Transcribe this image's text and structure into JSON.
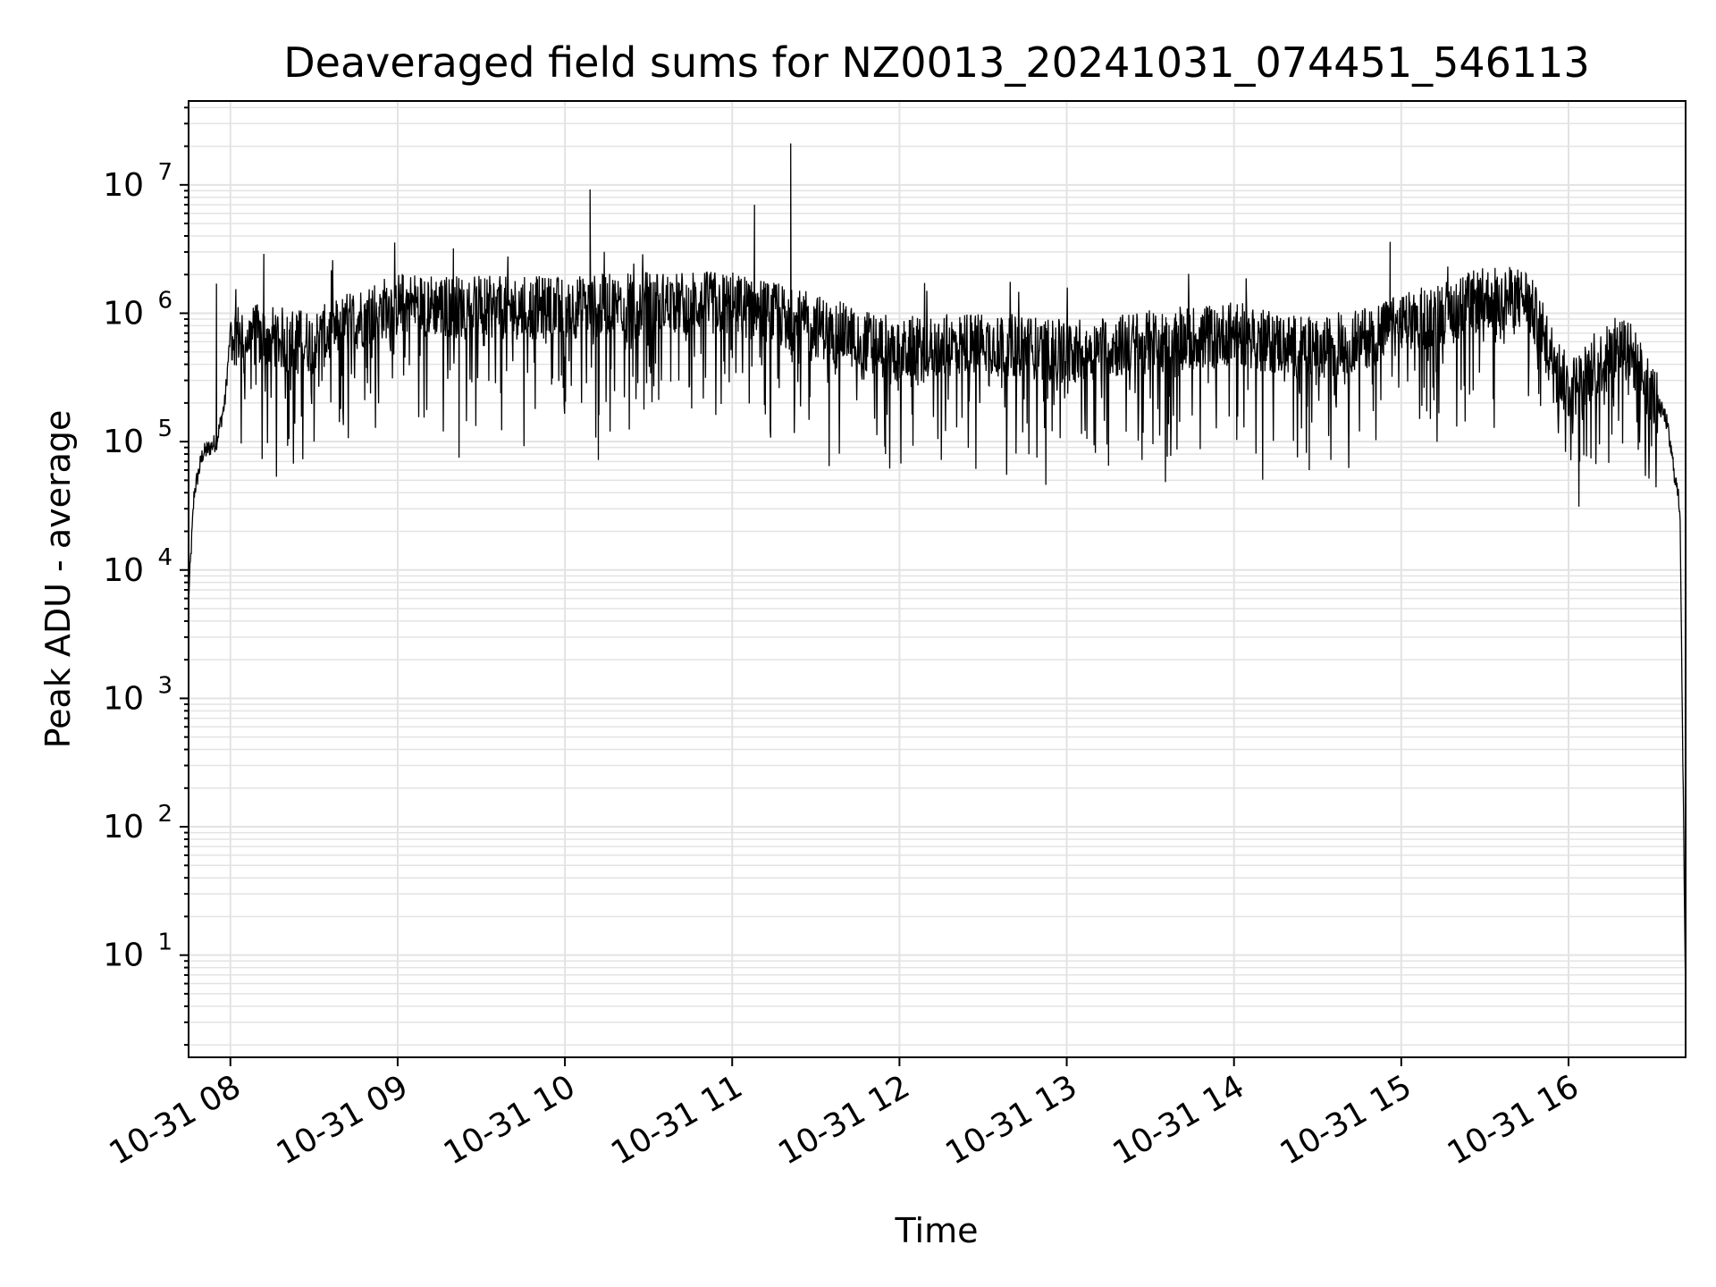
{
  "chart_data": {
    "type": "line",
    "title": "Deaveraged field sums for NZ0013_20241031_074451_546113",
    "xlabel": "Time",
    "ylabel": "Peak ADU - average",
    "yscale": "log",
    "ylim": [
      1.6,
      45000000
    ],
    "xlim": [
      "2024-10-31 07:45",
      "2024-10-31 16:42"
    ],
    "grid": "major and minor, light gray",
    "x_ticks": [
      "10-31 08",
      "10-31 09",
      "10-31 10",
      "10-31 11",
      "10-31 12",
      "10-31 13",
      "10-31 14",
      "10-31 15",
      "10-31 16"
    ],
    "y_ticks": [
      {
        "value": 10,
        "base": "10",
        "exp": "1"
      },
      {
        "value": 100,
        "base": "10",
        "exp": "2"
      },
      {
        "value": 1000,
        "base": "10",
        "exp": "3"
      },
      {
        "value": 10000,
        "base": "10",
        "exp": "4"
      },
      {
        "value": 100000,
        "base": "10",
        "exp": "5"
      },
      {
        "value": 1000000,
        "base": "10",
        "exp": "6"
      },
      {
        "value": 10000000,
        "base": "10",
        "exp": "7"
      }
    ],
    "series": [
      {
        "color": "#000000",
        "trend": [
          {
            "x": "2024-10-31 07:45",
            "y": 6000
          },
          {
            "x": "2024-10-31 07:47",
            "y": 40000
          },
          {
            "x": "2024-10-31 07:50",
            "y": 80000
          },
          {
            "x": "2024-10-31 07:55",
            "y": 100000
          },
          {
            "x": "2024-10-31 07:58",
            "y": 200000
          },
          {
            "x": "2024-10-31 08:00",
            "y": 700000
          },
          {
            "x": "2024-10-31 08:30",
            "y": 600000
          },
          {
            "x": "2024-10-31 08:45",
            "y": 900000
          },
          {
            "x": "2024-10-31 09:00",
            "y": 1200000
          },
          {
            "x": "2024-10-31 09:30",
            "y": 1100000
          },
          {
            "x": "2024-10-31 10:00",
            "y": 1100000
          },
          {
            "x": "2024-10-31 10:30",
            "y": 1200000
          },
          {
            "x": "2024-10-31 11:00",
            "y": 1200000
          },
          {
            "x": "2024-10-31 11:30",
            "y": 800000
          },
          {
            "x": "2024-10-31 12:00",
            "y": 500000
          },
          {
            "x": "2024-10-31 12:30",
            "y": 600000
          },
          {
            "x": "2024-10-31 13:00",
            "y": 500000
          },
          {
            "x": "2024-10-31 13:30",
            "y": 600000
          },
          {
            "x": "2024-10-31 14:00",
            "y": 700000
          },
          {
            "x": "2024-10-31 14:30",
            "y": 500000
          },
          {
            "x": "2024-10-31 15:00",
            "y": 800000
          },
          {
            "x": "2024-10-31 15:30",
            "y": 1300000
          },
          {
            "x": "2024-10-31 15:45",
            "y": 1300000
          },
          {
            "x": "2024-10-31 16:00",
            "y": 250000
          },
          {
            "x": "2024-10-31 16:20",
            "y": 600000
          },
          {
            "x": "2024-10-31 16:35",
            "y": 150000
          },
          {
            "x": "2024-10-31 16:40",
            "y": 30000
          },
          {
            "x": "2024-10-31 16:42",
            "y": 4
          }
        ],
        "spikes": [
          {
            "x": "2024-10-31 07:55",
            "y": 1700000
          },
          {
            "x": "2024-10-31 08:12",
            "y": 2900000
          },
          {
            "x": "2024-10-31 09:20",
            "y": 3200000
          },
          {
            "x": "2024-10-31 10:09",
            "y": 9200000
          },
          {
            "x": "2024-10-31 11:08",
            "y": 7000000
          },
          {
            "x": "2024-10-31 11:21",
            "y": 21000000
          },
          {
            "x": "2024-10-31 14:56",
            "y": 3600000
          }
        ],
        "dips": [
          {
            "x": "2024-10-31 08:30",
            "y": 100000
          },
          {
            "x": "2024-10-31 09:22",
            "y": 75000
          },
          {
            "x": "2024-10-31 10:12",
            "y": 72000
          },
          {
            "x": "2024-10-31 11:55",
            "y": 80000
          },
          {
            "x": "2024-10-31 12:15",
            "y": 72000
          },
          {
            "x": "2024-10-31 13:15",
            "y": 65000
          },
          {
            "x": "2024-10-31 13:27",
            "y": 72000
          },
          {
            "x": "2024-10-31 14:27",
            "y": 60000
          },
          {
            "x": "2024-10-31 16:04",
            "y": 70000
          }
        ]
      }
    ]
  }
}
